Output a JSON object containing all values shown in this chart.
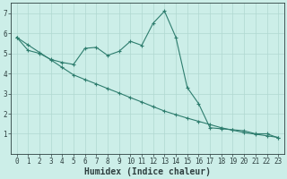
{
  "title": "",
  "xlabel": "Humidex (Indice chaleur)",
  "background_color": "#cceee8",
  "line_color": "#2e7d6e",
  "grid_color": "#b0d8d0",
  "x_data": [
    0,
    1,
    2,
    3,
    4,
    5,
    6,
    7,
    8,
    9,
    10,
    11,
    12,
    13,
    14,
    15,
    16,
    17,
    18,
    19,
    20,
    21,
    22,
    23
  ],
  "y_humidex": [
    5.8,
    5.15,
    5.0,
    4.7,
    4.55,
    4.45,
    5.25,
    5.3,
    4.9,
    5.1,
    5.6,
    5.4,
    6.5,
    7.1,
    5.8,
    3.3,
    2.5,
    1.3,
    1.25,
    1.2,
    1.15,
    1.0,
    1.0,
    0.8
  ],
  "y_trend": [
    5.8,
    5.42,
    5.05,
    4.68,
    4.3,
    3.93,
    3.7,
    3.48,
    3.25,
    3.03,
    2.8,
    2.58,
    2.35,
    2.13,
    1.95,
    1.78,
    1.62,
    1.46,
    1.3,
    1.18,
    1.06,
    0.98,
    0.9,
    0.82
  ],
  "ylim": [
    0,
    7.5
  ],
  "xlim": [
    -0.5,
    23.5
  ],
  "yticks": [
    1,
    2,
    3,
    4,
    5,
    6,
    7
  ],
  "xtick_labels": [
    "0",
    "1",
    "2",
    "3",
    "4",
    "5",
    "6",
    "7",
    "8",
    "9",
    "10",
    "11",
    "12",
    "13",
    "14",
    "15",
    "16",
    "17",
    "18",
    "19",
    "20",
    "21",
    "22",
    "23"
  ],
  "tick_fontsize": 5.5,
  "xlabel_fontsize": 7,
  "marker": "+",
  "markersize": 3.5,
  "linewidth": 0.8
}
